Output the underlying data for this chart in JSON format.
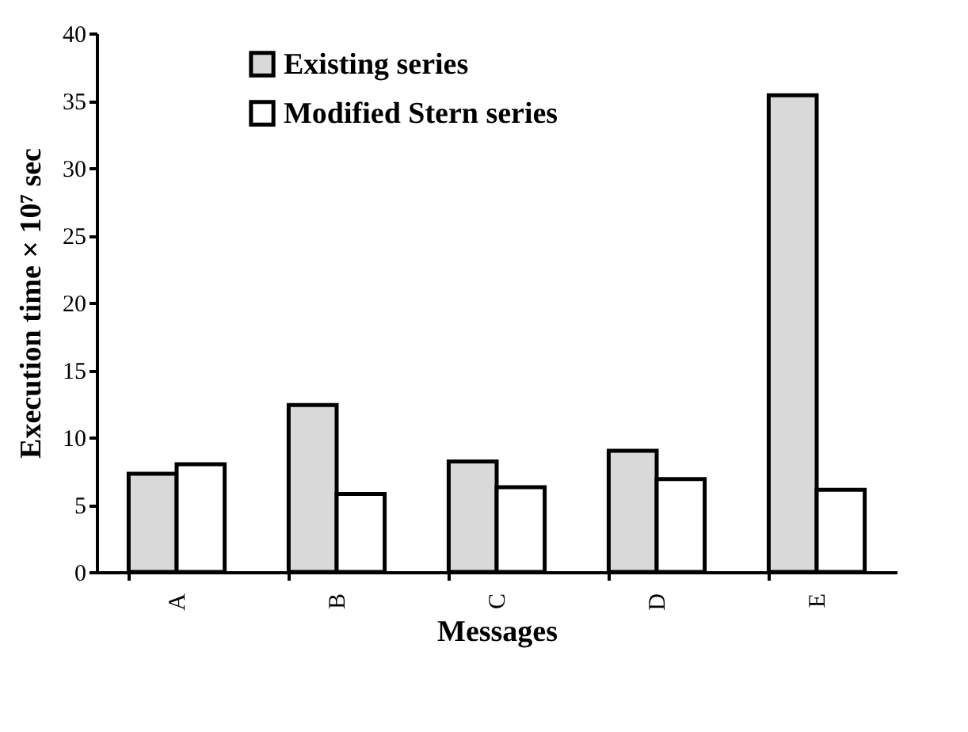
{
  "chart_data": {
    "type": "bar",
    "xlabel": "Messages",
    "ylabel": "Execution time × 10⁷ sec",
    "categories": [
      "A",
      "B",
      "C",
      "D",
      "E"
    ],
    "series": [
      {
        "name": "Existing series",
        "color": "#d9d9d9",
        "values": [
          7.3,
          12.4,
          8.2,
          9.0,
          35.4
        ]
      },
      {
        "name": "Modified Stern series",
        "color": "#ffffff",
        "values": [
          8.0,
          5.8,
          6.3,
          6.9,
          6.1
        ]
      }
    ],
    "ylim": [
      0,
      40
    ],
    "yticks": [
      0,
      5,
      10,
      15,
      20,
      25,
      30,
      35,
      40
    ],
    "grid": false,
    "legend": "top left"
  }
}
